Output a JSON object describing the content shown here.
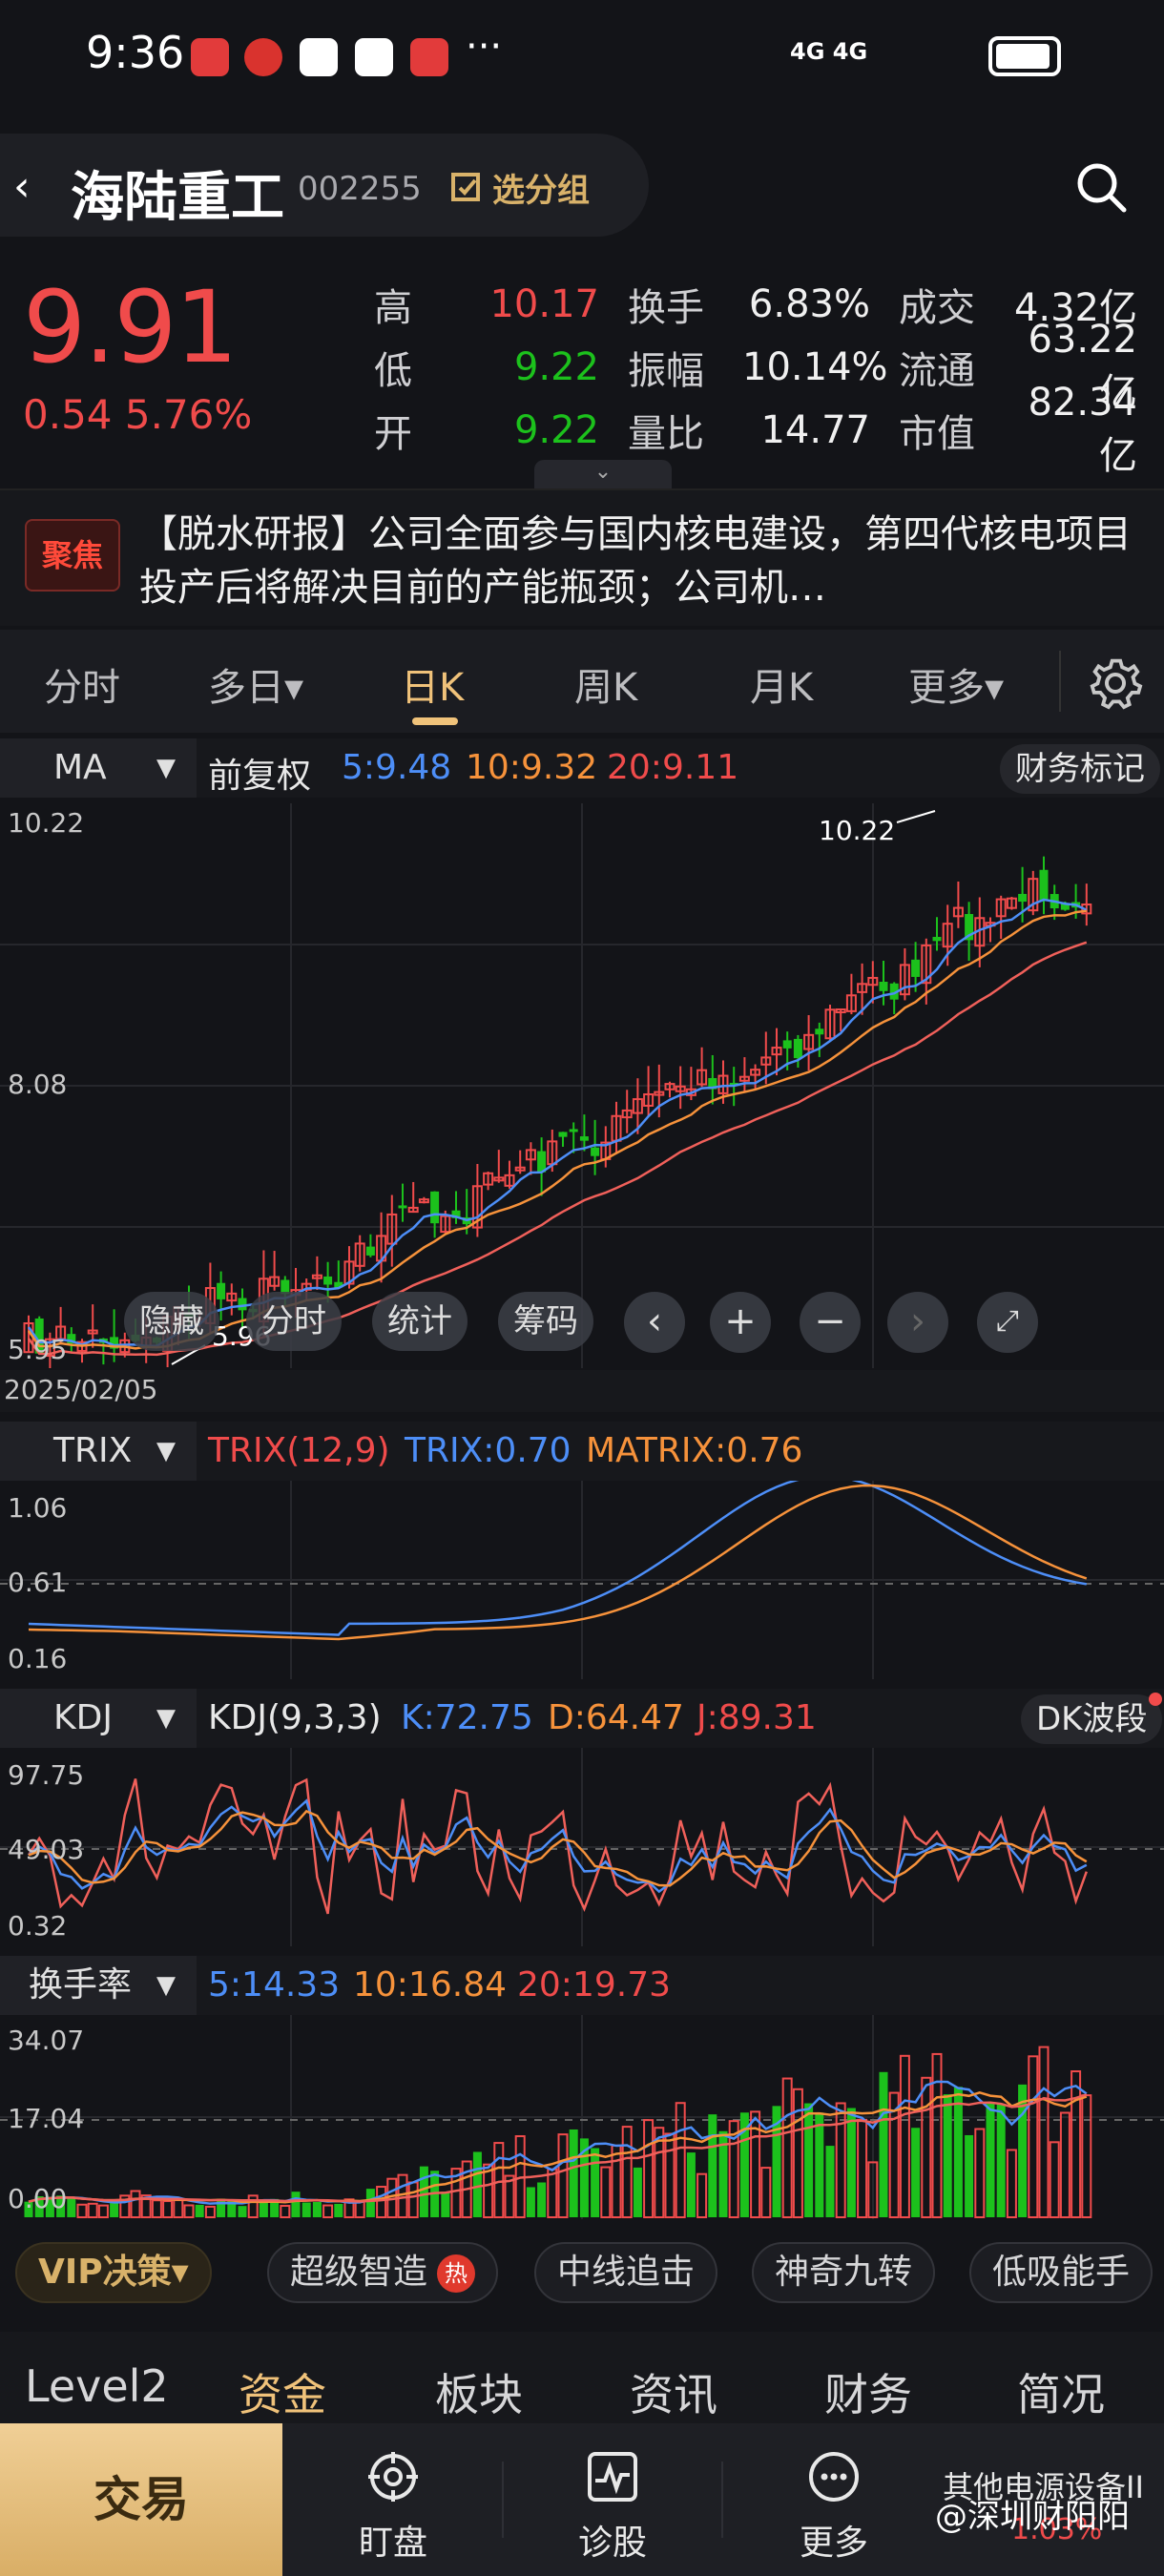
{
  "status": {
    "time": "9:36",
    "net": "4G 4G",
    "more": "···"
  },
  "header": {
    "back": "‹",
    "name": "海陆重工",
    "code": "002255",
    "group": "选分组"
  },
  "quote": {
    "price": "9.91",
    "change": "0.54 5.76%",
    "rows": [
      {
        "l1": "高",
        "v1": "10.17",
        "l2": "换手",
        "v2": "6.83%",
        "l3": "成交",
        "v3": "4.32亿"
      },
      {
        "l1": "低",
        "v1": "9.22",
        "l2": "振幅",
        "v2": "10.14%",
        "l3": "流通",
        "v3": "63.22亿"
      },
      {
        "l1": "开",
        "v1": "9.22",
        "l2": "量比",
        "v2": "14.77",
        "l3": "市值",
        "v3": "82.34亿"
      }
    ]
  },
  "news": {
    "badge": "聚焦",
    "text": "【脱水研报】公司全面参与国内核电建设，第四代核电项目投产后将解决目前的产能瓶颈；公司机…"
  },
  "tabs": [
    "分时",
    "多日▾",
    "日K",
    "周K",
    "月K",
    "更多▾"
  ],
  "ma_bar": {
    "selector": "MA",
    "fq": "前复权",
    "ma5": "5:9.48",
    "ma10": "10:9.32",
    "ma20": "20:9.11",
    "marker_btn": "财务标记"
  },
  "kline": {
    "y_top": "10.22",
    "y_mid": "8.08",
    "y_bot": "5.95",
    "high_label": "10.22",
    "low_label": "5.96",
    "start_date": "2025/02/05",
    "overlay": {
      "hide": "隐藏",
      "intraday": "分时",
      "stats": "统计",
      "chips": "筹码"
    }
  },
  "trix_bar": {
    "selector": "TRIX",
    "name": "TRIX(12,9)",
    "trix": "TRIX:0.70",
    "matrix": "MATRIX:0.76"
  },
  "trix_axis": {
    "top": "1.06",
    "mid": "0.61",
    "bot": "0.16"
  },
  "kdj_bar": {
    "selector": "KDJ",
    "name": "KDJ(9,3,3)",
    "k": "K:72.75",
    "d": "D:64.47",
    "j": "J:89.31",
    "btn": "DK波段"
  },
  "kdj_axis": {
    "top": "97.75",
    "mid": "49.03",
    "bot": "0.32"
  },
  "turn_bar": {
    "selector": "换手率",
    "m5": "5:14.33",
    "m10": "10:16.84",
    "m20": "20:19.73"
  },
  "turn_axis": {
    "top": "34.07",
    "mid": "17.04",
    "bot": "0.00"
  },
  "strategies": {
    "vip": "VIP决策▾",
    "items": [
      "超级智造",
      "中线追击",
      "神奇九转",
      "低吸能手"
    ],
    "hot": "热"
  },
  "bottom_tabs": [
    "Level2",
    "资金",
    "板块",
    "资讯",
    "财务",
    "简况"
  ],
  "actions": {
    "trade": "交易",
    "watch": "盯盘",
    "diagnose": "诊股",
    "more": "更多",
    "sector": "其他电源设备II",
    "sector_chg": "1.03%"
  },
  "watermark": "@深圳财阳阳",
  "colors": {
    "up": "#f04b4b",
    "down": "#1cc11c",
    "ma5": "#4d8ef7",
    "ma10": "#f6923b",
    "ma20": "#f0605a",
    "accent": "#f0c27a"
  }
}
